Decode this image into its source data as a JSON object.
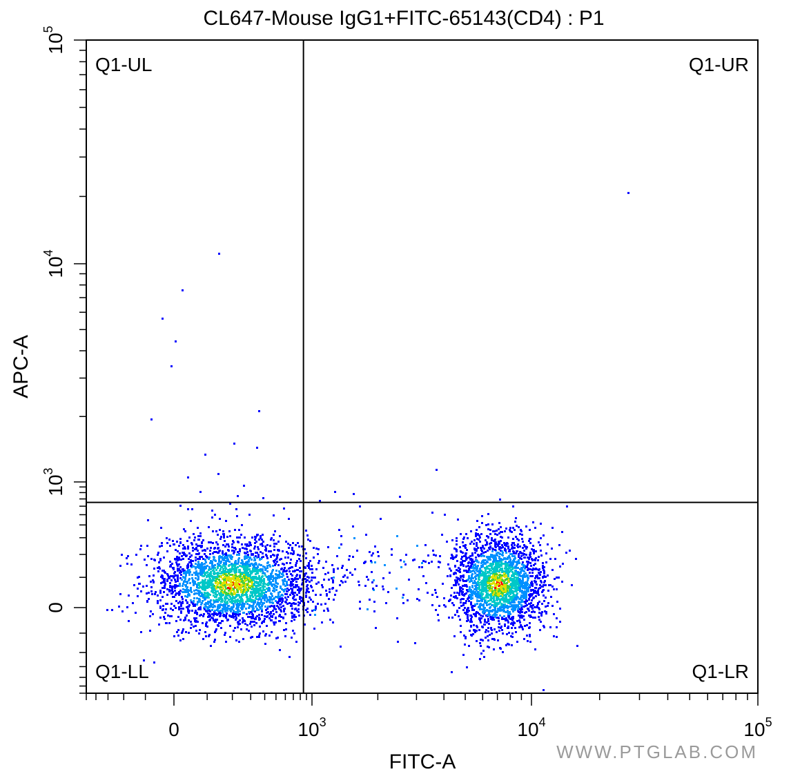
{
  "chart_data": {
    "type": "scatter",
    "title": "CL647-Mouse IgG1+FITC-65143(CD4) : P1",
    "xlabel": "FITC-A",
    "ylabel": "APC-A",
    "x_scale": "biexponential",
    "y_scale": "biexponential",
    "xlim": [
      -500,
      100000
    ],
    "ylim": [
      -600,
      100000
    ],
    "x_ticks": [
      {
        "value": 0,
        "base": "0",
        "exp": ""
      },
      {
        "value": 1000,
        "base": "10",
        "exp": "3"
      },
      {
        "value": 10000,
        "base": "10",
        "exp": "4"
      },
      {
        "value": 100000,
        "base": "10",
        "exp": "5"
      }
    ],
    "y_ticks": [
      {
        "value": 0,
        "base": "0",
        "exp": ""
      },
      {
        "value": 1000,
        "base": "10",
        "exp": "3"
      },
      {
        "value": 10000,
        "base": "10",
        "exp": "4"
      },
      {
        "value": 100000,
        "base": "10",
        "exp": "5"
      }
    ],
    "gate": {
      "x": 850,
      "y": 650
    },
    "quadrants": {
      "ul": "Q1-UL",
      "ur": "Q1-UR",
      "ll": "Q1-LL",
      "lr": "Q1-LR"
    },
    "populations": [
      {
        "region": "Q1-LL",
        "center_x": 200,
        "center_y": 80
      },
      {
        "region": "Q1-LR",
        "center_x": 7000,
        "center_y": 80
      }
    ],
    "grid": false,
    "colormap": [
      "#0000ff",
      "#0090ff",
      "#00c8c8",
      "#40d040",
      "#e0e000",
      "#ff0000"
    ]
  },
  "watermark": "WWW.PTGLAB.COM"
}
